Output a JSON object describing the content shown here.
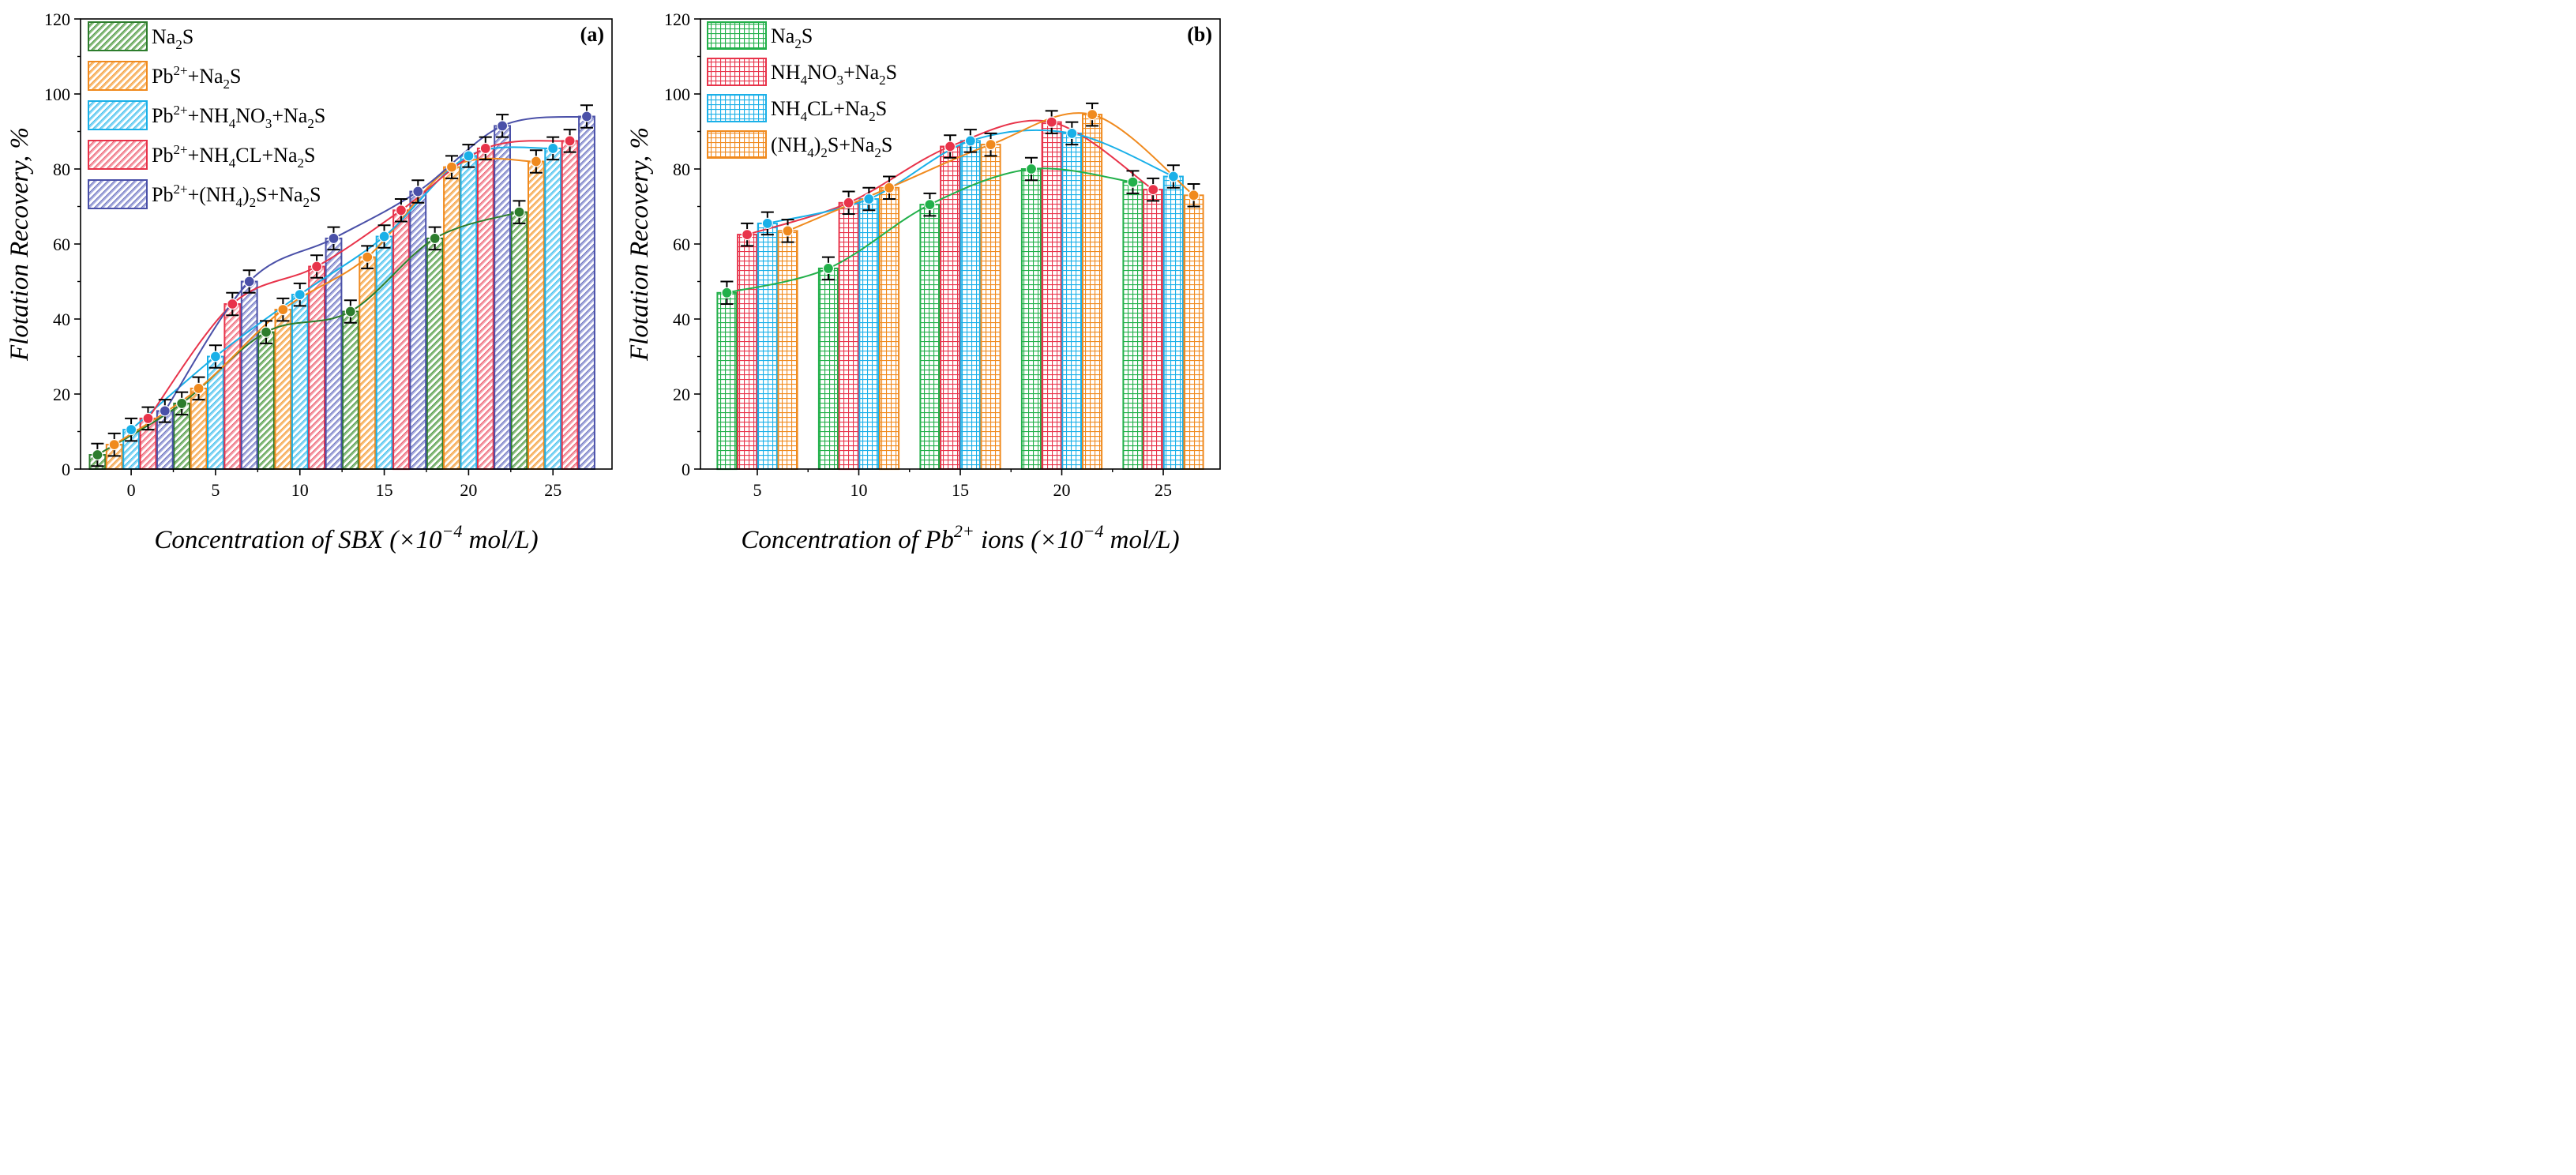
{
  "chart_data": [
    {
      "type": "bar",
      "panel_label": "(a)",
      "title": "",
      "xlabel": "Concentration of SBX (×10",
      "xlabel_sup": "−4",
      "xlabel_tail": " mol/L)",
      "ylabel": "Flotation Recovery, %",
      "xlim": [
        -3,
        28.5
      ],
      "ylim": [
        0,
        120
      ],
      "xticks": [
        0,
        5,
        10,
        15,
        20,
        25
      ],
      "yticks": [
        0,
        20,
        40,
        60,
        80,
        100,
        120
      ],
      "x": [
        0,
        5,
        10,
        15,
        20,
        25
      ],
      "bar_width": 1.0,
      "legend_position": "top-left",
      "series": [
        {
          "legend_parts": [
            [
              "Na",
              ""
            ],
            [
              "2",
              "sub"
            ],
            [
              "S",
              ""
            ]
          ],
          "color": "#2d7d2d",
          "fill": "#8cc07e",
          "pattern": "diag",
          "offset": -2,
          "values": [
            3.8,
            17.5,
            36.5,
            42,
            61.5,
            68.5
          ],
          "errors": [
            3,
            3,
            3,
            3,
            3,
            3
          ]
        },
        {
          "legend_parts": [
            [
              "Pb",
              ""
            ],
            [
              "2+",
              "sup"
            ],
            [
              "+Na",
              ""
            ],
            [
              "2",
              "sub"
            ],
            [
              "S",
              ""
            ]
          ],
          "color": "#f08a1e",
          "fill": "#f9c07a",
          "pattern": "diag",
          "offset": -1,
          "values": [
            6.5,
            21.5,
            42.5,
            56.5,
            80.5,
            82
          ],
          "errors": [
            3,
            3,
            3,
            3,
            3,
            3
          ]
        },
        {
          "legend_parts": [
            [
              "Pb",
              ""
            ],
            [
              "2+",
              "sup"
            ],
            [
              "+NH",
              ""
            ],
            [
              "4",
              "sub"
            ],
            [
              "NO",
              ""
            ],
            [
              "3",
              "sub"
            ],
            [
              "+Na",
              ""
            ],
            [
              "2",
              "sub"
            ],
            [
              "S",
              ""
            ]
          ],
          "color": "#1ab0e8",
          "fill": "#8ad8f5",
          "pattern": "diag",
          "offset": 0,
          "values": [
            10.5,
            30,
            46.5,
            62,
            83.5,
            85.5
          ],
          "errors": [
            3,
            3,
            3,
            3,
            3,
            3
          ]
        },
        {
          "legend_parts": [
            [
              "Pb",
              ""
            ],
            [
              "2+",
              "sup"
            ],
            [
              "+NH",
              ""
            ],
            [
              "4",
              "sub"
            ],
            [
              "CL+Na",
              ""
            ],
            [
              "2",
              "sub"
            ],
            [
              "S",
              ""
            ]
          ],
          "color": "#e8334a",
          "fill": "#f5a3ad",
          "pattern": "diag",
          "offset": 1,
          "values": [
            13.5,
            44,
            54,
            69,
            85.5,
            87.5
          ],
          "errors": [
            3,
            3,
            3,
            3,
            3,
            3
          ]
        },
        {
          "legend_parts": [
            [
              "Pb",
              ""
            ],
            [
              "2+",
              "sup"
            ],
            [
              "+(NH",
              ""
            ],
            [
              "4",
              "sub"
            ],
            [
              ")",
              ""
            ],
            [
              "2",
              "sub"
            ],
            [
              "S+Na",
              ""
            ],
            [
              "2",
              "sub"
            ],
            [
              "S",
              ""
            ]
          ],
          "color": "#4a50a8",
          "fill": "#a9aee0",
          "pattern": "diag",
          "offset": 2,
          "values": [
            15.5,
            50,
            61.5,
            74,
            91.5,
            94
          ],
          "errors": [
            3,
            3,
            3,
            3,
            3,
            3
          ]
        }
      ]
    },
    {
      "type": "bar",
      "panel_label": "(b)",
      "title": "",
      "xlabel": "Concentration of Pb",
      "xlabel_sup": "2+",
      "xlabel_tail": " ions (×10",
      "xlabel_sup2": "−4",
      "xlabel_tail2": " mol/L)",
      "ylabel": "Flotation Recovery, %",
      "xlim": [
        2.2,
        27.8
      ],
      "ylim": [
        0,
        120
      ],
      "xticks": [
        5,
        10,
        15,
        20,
        25
      ],
      "yticks": [
        0,
        20,
        40,
        60,
        80,
        100,
        120
      ],
      "x": [
        5,
        10,
        15,
        20,
        25
      ],
      "bar_width": 1.0,
      "legend_position": "top-left",
      "series": [
        {
          "legend_parts": [
            [
              "Na",
              ""
            ],
            [
              "2",
              "sub"
            ],
            [
              "S",
              ""
            ]
          ],
          "color": "#22b04a",
          "fill": "#c6ecc9",
          "pattern": "grid",
          "offset": -1.5,
          "values": [
            47,
            53.5,
            70.5,
            80,
            76.5
          ],
          "errors": [
            3,
            3,
            3,
            3,
            3
          ]
        },
        {
          "legend_parts": [
            [
              "NH",
              ""
            ],
            [
              "4",
              "sub"
            ],
            [
              "NO",
              ""
            ],
            [
              "3",
              "sub"
            ],
            [
              "+Na",
              ""
            ],
            [
              "2",
              "sub"
            ],
            [
              "S",
              ""
            ]
          ],
          "color": "#e8334a",
          "fill": "#f7c6cc",
          "pattern": "grid",
          "offset": -0.5,
          "values": [
            62.5,
            71,
            86,
            92.5,
            74.5
          ],
          "errors": [
            3,
            3,
            3,
            3,
            3
          ]
        },
        {
          "legend_parts": [
            [
              "NH",
              ""
            ],
            [
              "4",
              "sub"
            ],
            [
              "CL+Na",
              ""
            ],
            [
              "2",
              "sub"
            ],
            [
              "S",
              ""
            ]
          ],
          "color": "#1ab0e8",
          "fill": "#b8e6f7",
          "pattern": "grid",
          "offset": 0.5,
          "values": [
            65.5,
            72,
            87.5,
            89.5,
            78
          ],
          "errors": [
            3,
            3,
            3,
            3,
            3
          ]
        },
        {
          "legend_parts": [
            [
              "(NH",
              ""
            ],
            [
              "4",
              "sub"
            ],
            [
              ")",
              ""
            ],
            [
              "2",
              "sub"
            ],
            [
              "S+Na",
              ""
            ],
            [
              "2",
              "sub"
            ],
            [
              "S",
              ""
            ]
          ],
          "color": "#f08a1e",
          "fill": "#fbd6a8",
          "pattern": "grid",
          "offset": 1.5,
          "values": [
            63.5,
            75,
            86.5,
            94.5,
            73
          ],
          "errors": [
            3,
            3,
            3,
            3,
            3
          ]
        }
      ]
    }
  ]
}
